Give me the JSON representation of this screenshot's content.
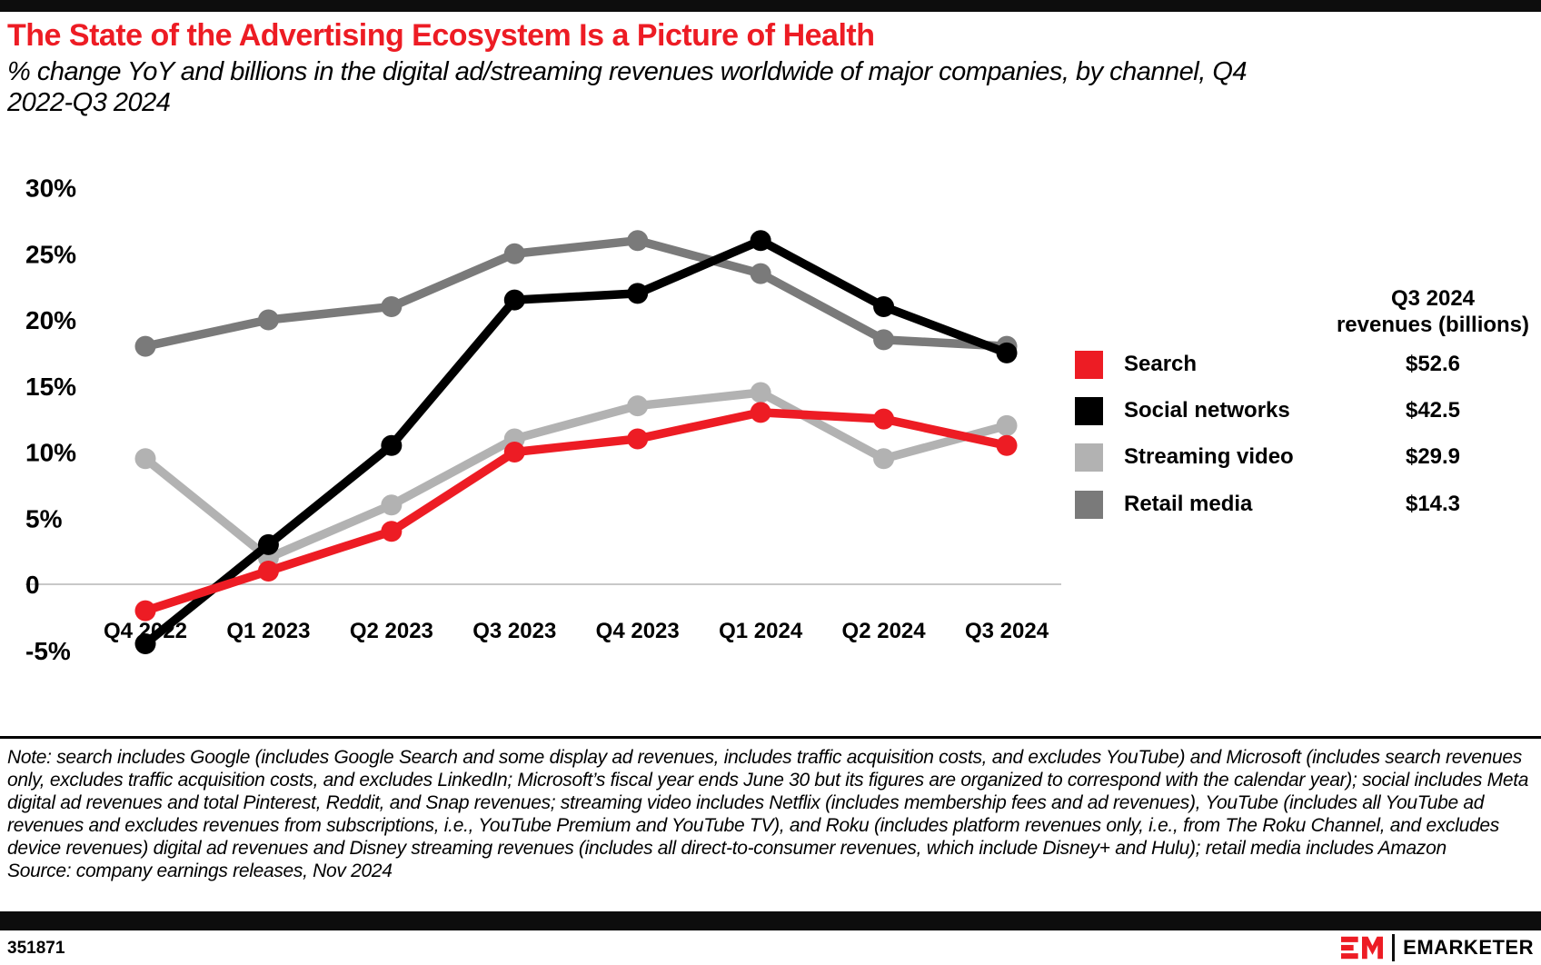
{
  "header": {
    "title": "The State of the Advertising Ecosystem Is a Picture of Health",
    "subtitle": "% change YoY and billions in the digital ad/streaming revenues worldwide of major companies, by channel, Q4 2022-Q3 2024"
  },
  "colors": {
    "brand_red": "#ed1c24",
    "black": "#000000",
    "light_gray": "#b2b2b2",
    "dark_gray": "#7a7a7a",
    "gridline": "#c8c8c8",
    "bar": "#0d0d0d"
  },
  "chart_data": {
    "type": "line",
    "title": "The State of the Advertising Ecosystem Is a Picture of Health",
    "categories": [
      "Q4 2022",
      "Q1 2023",
      "Q2 2023",
      "Q3 2023",
      "Q4 2023",
      "Q1 2024",
      "Q2 2024",
      "Q3 2024"
    ],
    "series": [
      {
        "name": "Search",
        "color": "#ed1c24",
        "values": [
          -2,
          1,
          4,
          10,
          11,
          13,
          12.5,
          10.5
        ],
        "q3_2024_revenue": "$52.6"
      },
      {
        "name": "Social networks",
        "color": "#000000",
        "values": [
          -4.5,
          3,
          10.5,
          21.5,
          22,
          26,
          21,
          17.5
        ],
        "q3_2024_revenue": "$42.5"
      },
      {
        "name": "Streaming video",
        "color": "#b2b2b2",
        "values": [
          9.5,
          2,
          6,
          11,
          13.5,
          14.5,
          9.5,
          12
        ],
        "q3_2024_revenue": "$29.9"
      },
      {
        "name": "Retail media",
        "color": "#7a7a7a",
        "values": [
          18,
          20,
          21,
          25,
          26,
          23.5,
          18.5,
          18
        ],
        "q3_2024_revenue": "$14.3"
      }
    ],
    "y_ticks": [
      {
        "label": "30%",
        "value": 30
      },
      {
        "label": "25%",
        "value": 25
      },
      {
        "label": "20%",
        "value": 20
      },
      {
        "label": "15%",
        "value": 15
      },
      {
        "label": "10%",
        "value": 10
      },
      {
        "label": "5%",
        "value": 5
      },
      {
        "label": "0",
        "value": 0
      },
      {
        "label": "-5%",
        "value": -5
      }
    ],
    "ylim": [
      -5,
      30
    ],
    "grid": "zero-line-only",
    "gridline_color": "#c8c8c8",
    "legend_position": "right",
    "legend_header": {
      "line1": "Q3 2024",
      "line2": "revenues (billions)"
    }
  },
  "note": {
    "text": "Note: search includes Google (includes Google Search and some display ad revenues, includes traffic acquisition costs, and excludes YouTube) and Microsoft (includes search revenues only, excludes traffic acquisition costs, and excludes LinkedIn; Microsoft’s fiscal year ends June 30 but its figures are organized to correspond with the calendar year); social includes Meta digital ad revenues and total Pinterest, Reddit, and Snap revenues; streaming video includes Netflix (includes membership fees and ad revenues), YouTube (includes all YouTube ad revenues and excludes revenues from subscriptions, i.e., YouTube Premium and YouTube TV), and Roku (includes platform revenues only, i.e., from The Roku Channel, and excludes device revenues) digital ad revenues and Disney streaming revenues (includes all direct-to-consumer revenues, which include Disney+ and Hulu); retail media includes Amazon",
    "source": "Source: company earnings releases, Nov 2024"
  },
  "footer": {
    "chart_id": "351871",
    "brand_name": "EMARKETER"
  }
}
